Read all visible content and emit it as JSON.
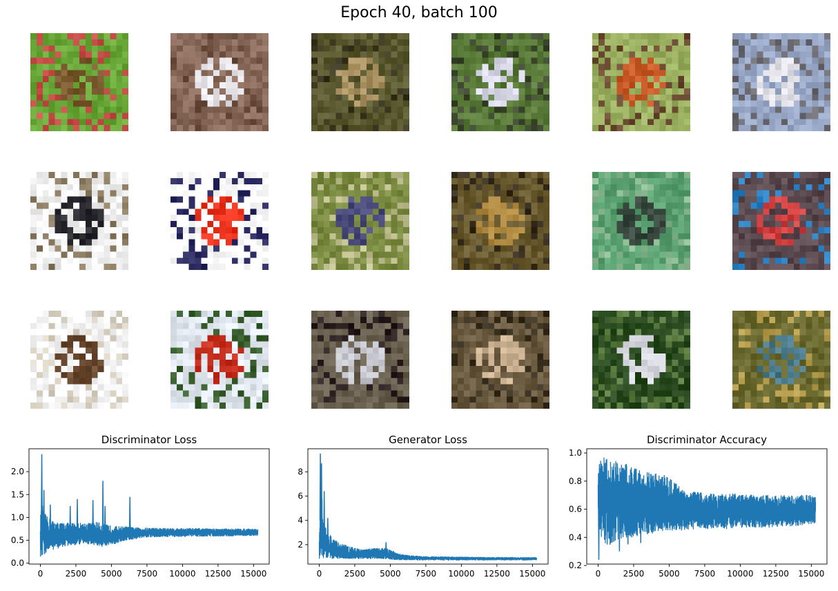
{
  "title": "Epoch 40, batch 100",
  "sample_grid": {
    "rows": 3,
    "cols": 6,
    "tiles": [
      {
        "colors": [
          "#6aa83a",
          "#7b5a30",
          "#c9504a"
        ]
      },
      {
        "colors": [
          "#8a6a5a",
          "#e8e6ea",
          "#6e5040"
        ]
      },
      {
        "colors": [
          "#5c5a30",
          "#a89060",
          "#3a3620"
        ]
      },
      {
        "colors": [
          "#5a7a3a",
          "#d8d8e8",
          "#3e4a30"
        ]
      },
      {
        "colors": [
          "#9ab060",
          "#c85a28",
          "#6a4a30"
        ]
      },
      {
        "colors": [
          "#9aa8c8",
          "#e0e0e6",
          "#6a6a70"
        ]
      },
      {
        "colors": [
          "#f2f2f2",
          "#2a2a30",
          "#8a7a60"
        ]
      },
      {
        "colors": [
          "#ffffff",
          "#e8301a",
          "#2a2a60"
        ]
      },
      {
        "colors": [
          "#7a8a40",
          "#4a4a7a",
          "#c0c090"
        ]
      },
      {
        "colors": [
          "#6a5a30",
          "#b08a40",
          "#3a3020"
        ]
      },
      {
        "colors": [
          "#5aa070",
          "#3a4a40",
          "#8ab890"
        ]
      },
      {
        "colors": [
          "#5a4a50",
          "#d04040",
          "#2a80c0"
        ]
      },
      {
        "colors": [
          "#f8f8f8",
          "#6a4a30",
          "#d8d0c0"
        ]
      },
      {
        "colors": [
          "#e0e6ee",
          "#c83020",
          "#3a6030"
        ]
      },
      {
        "colors": [
          "#6a6050",
          "#c8c8d0",
          "#2a2020"
        ]
      },
      {
        "colors": [
          "#6a5a40",
          "#c8b090",
          "#3a3020"
        ]
      },
      {
        "colors": [
          "#2a4a20",
          "#d8d8e0",
          "#5a7a40"
        ]
      },
      {
        "colors": [
          "#6a6a30",
          "#4a7a8a",
          "#b8a050"
        ]
      }
    ]
  },
  "chart_data": [
    {
      "type": "line",
      "title": "Discriminator Loss",
      "color": "#1f77b4",
      "xlim": [
        -800,
        16100
      ],
      "ylim": [
        -0.02,
        2.5
      ],
      "xticks": [
        0,
        2500,
        5000,
        7500,
        10000,
        12500,
        15000
      ],
      "yticks": [
        0.0,
        0.5,
        1.0,
        1.5,
        2.0
      ],
      "ytick_decimals": 1,
      "series": [
        {
          "x": [
            0,
            100,
            200,
            300,
            500,
            800,
            1000,
            1500,
            2000,
            2500,
            3000,
            3500,
            4000,
            4500,
            5000,
            5500,
            6000,
            6500,
            7000,
            8000,
            9000,
            10000,
            11000,
            12000,
            13000,
            14000,
            15300
          ],
          "y": [
            0.6,
            1.0,
            0.7,
            0.55,
            0.6,
            0.55,
            0.6,
            0.62,
            0.62,
            0.62,
            0.62,
            0.62,
            0.6,
            0.55,
            0.58,
            0.62,
            0.64,
            0.65,
            0.66,
            0.67,
            0.67,
            0.67,
            0.67,
            0.67,
            0.67,
            0.67,
            0.67
          ],
          "upper": [
            1.0,
            1.3,
            1.2,
            1.1,
            1.0,
            0.95,
            0.9,
            0.88,
            0.88,
            0.88,
            0.88,
            0.88,
            0.9,
            0.85,
            0.82,
            0.8,
            0.8,
            0.78,
            0.77,
            0.77,
            0.76,
            0.76,
            0.76,
            0.75,
            0.75,
            0.75,
            0.75
          ],
          "lower": [
            0.1,
            0.05,
            0.15,
            0.2,
            0.25,
            0.3,
            0.3,
            0.35,
            0.38,
            0.4,
            0.42,
            0.42,
            0.38,
            0.35,
            0.4,
            0.45,
            0.5,
            0.52,
            0.55,
            0.57,
            0.58,
            0.58,
            0.59,
            0.59,
            0.59,
            0.6,
            0.6
          ],
          "spikes": [
            [
              100,
              2.38
            ],
            [
              250,
              1.6
            ],
            [
              700,
              1.28
            ],
            [
              2100,
              1.25
            ],
            [
              2600,
              1.4
            ],
            [
              3700,
              1.38
            ],
            [
              4400,
              1.8
            ],
            [
              4550,
              1.25
            ],
            [
              6300,
              1.45
            ]
          ]
        }
      ]
    },
    {
      "type": "line",
      "title": "Generator Loss",
      "color": "#1f77b4",
      "xlim": [
        -800,
        16100
      ],
      "ylim": [
        0.4,
        9.9
      ],
      "xticks": [
        0,
        2500,
        5000,
        7500,
        10000,
        12500,
        15000
      ],
      "yticks": [
        2,
        4,
        6,
        8
      ],
      "ytick_decimals": 0,
      "series": [
        {
          "x": [
            0,
            100,
            200,
            300,
            500,
            800,
            1000,
            1500,
            2000,
            2500,
            3000,
            3500,
            4000,
            4500,
            5000,
            5500,
            6000,
            7000,
            8000,
            10000,
            12000,
            14000,
            15300
          ],
          "y": [
            2.0,
            4.5,
            3.5,
            2.2,
            1.8,
            1.6,
            1.5,
            1.3,
            1.2,
            1.15,
            1.15,
            1.2,
            1.25,
            1.3,
            1.2,
            1.0,
            0.95,
            0.9,
            0.9,
            0.88,
            0.85,
            0.85,
            0.85
          ],
          "upper": [
            3.0,
            8.0,
            6.0,
            4.5,
            3.2,
            2.8,
            2.5,
            2.1,
            1.9,
            1.7,
            1.6,
            1.65,
            1.7,
            1.75,
            1.6,
            1.3,
            1.15,
            1.05,
            1.0,
            0.98,
            0.95,
            0.95,
            0.95
          ],
          "lower": [
            0.8,
            1.2,
            1.0,
            0.9,
            0.9,
            0.85,
            0.85,
            0.85,
            0.85,
            0.85,
            0.85,
            0.85,
            0.85,
            0.85,
            0.8,
            0.75,
            0.75,
            0.73,
            0.73,
            0.73,
            0.73,
            0.73,
            0.73
          ],
          "spikes": [
            [
              80,
              9.5
            ],
            [
              160,
              8.7
            ],
            [
              350,
              6.4
            ],
            [
              600,
              4.2
            ],
            [
              4700,
              2.2
            ]
          ]
        }
      ]
    },
    {
      "type": "line",
      "title": "Discriminator Accuracy",
      "color": "#1f77b4",
      "xlim": [
        -800,
        16100
      ],
      "ylim": [
        0.21,
        1.03
      ],
      "xticks": [
        0,
        2500,
        5000,
        7500,
        10000,
        12500,
        15000
      ],
      "yticks": [
        0.2,
        0.4,
        0.6,
        0.8,
        1.0
      ],
      "ytick_decimals": 1,
      "series": [
        {
          "x": [
            0,
            100,
            300,
            500,
            1000,
            1500,
            2000,
            2500,
            3000,
            3500,
            4000,
            4500,
            5000,
            5500,
            6000,
            7000,
            8000,
            9000,
            10000,
            11000,
            12000,
            13000,
            14000,
            15300
          ],
          "y": [
            0.7,
            0.75,
            0.72,
            0.7,
            0.68,
            0.67,
            0.66,
            0.65,
            0.64,
            0.63,
            0.62,
            0.62,
            0.6,
            0.6,
            0.6,
            0.59,
            0.59,
            0.59,
            0.59,
            0.59,
            0.59,
            0.59,
            0.59,
            0.59
          ],
          "upper": [
            1.0,
            1.0,
            0.98,
            0.96,
            0.95,
            0.93,
            0.92,
            0.9,
            0.88,
            0.87,
            0.86,
            0.85,
            0.82,
            0.78,
            0.74,
            0.72,
            0.71,
            0.71,
            0.71,
            0.7,
            0.7,
            0.7,
            0.7,
            0.7
          ],
          "lower": [
            0.3,
            0.4,
            0.4,
            0.35,
            0.35,
            0.38,
            0.4,
            0.4,
            0.42,
            0.42,
            0.43,
            0.44,
            0.45,
            0.45,
            0.45,
            0.46,
            0.46,
            0.46,
            0.47,
            0.47,
            0.47,
            0.48,
            0.48,
            0.5
          ],
          "spikes": [
            [
              50,
              0.24
            ],
            [
              1500,
              0.3
            ],
            [
              2100,
              0.35
            ],
            [
              3000,
              0.36
            ]
          ]
        }
      ]
    }
  ]
}
